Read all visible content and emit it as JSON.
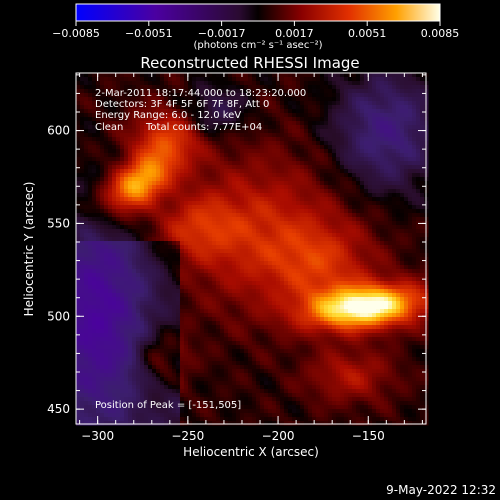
{
  "chart_data": {
    "type": "heatmap",
    "title": "Reconstructed RHESSI Image",
    "xlabel": "Heliocentric X (arcsec)",
    "ylabel": "Heliocentric Y (arcsec)",
    "xlim": [
      -312,
      -118
    ],
    "ylim": [
      442,
      631
    ],
    "xticks": [
      -300,
      -250,
      -200,
      -150
    ],
    "xtick_labels": [
      "−300",
      "−250",
      "−200",
      "−150"
    ],
    "yticks": [
      450,
      500,
      550,
      600
    ],
    "ytick_labels": [
      "450",
      "500",
      "550",
      "600"
    ],
    "colorbar": {
      "min": -0.0085,
      "max": 0.0085,
      "ticks": [
        -0.0085,
        -0.0051,
        -0.0017,
        0.0017,
        0.0051,
        0.0085
      ],
      "tick_labels": [
        "−0.0085",
        "−0.0051",
        "−0.0017",
        "0.0017",
        "0.0051",
        "0.0085"
      ],
      "units": "(photons cm⁻² s⁻¹ asec⁻²)"
    },
    "sources": [
      {
        "x": -278,
        "y": 571,
        "sx": 14,
        "sy": 8,
        "peak": 0.0062,
        "angle": -35
      },
      {
        "x": -262,
        "y": 595,
        "sx": 14,
        "sy": 11,
        "peak": 0.0035,
        "angle": 0
      },
      {
        "x": -151,
        "y": 505,
        "sx": 22,
        "sy": 8,
        "peak": 0.0085,
        "angle": -5
      },
      {
        "x": -210,
        "y": 545,
        "sx": 30,
        "sy": 28,
        "peak": 0.0028,
        "angle": 0
      },
      {
        "x": -245,
        "y": 548,
        "sx": 16,
        "sy": 12,
        "peak": 0.0022,
        "angle": 0
      },
      {
        "x": -175,
        "y": 528,
        "sx": 20,
        "sy": 16,
        "peak": 0.0025,
        "angle": 0
      },
      {
        "x": -265,
        "y": 478,
        "sx": 10,
        "sy": 12,
        "peak": 0.002,
        "angle": 0
      },
      {
        "x": -160,
        "y": 468,
        "sx": 16,
        "sy": 10,
        "peak": 0.0022,
        "angle": 0
      }
    ],
    "negative_regions": [
      {
        "x": -300,
        "y": 500,
        "sx": 18,
        "sy": 38,
        "peak": -0.0035
      },
      {
        "x": -140,
        "y": 600,
        "sx": 20,
        "sy": 22,
        "peak": -0.003
      },
      {
        "x": -235,
        "y": 610,
        "sx": 12,
        "sy": 10,
        "peak": -0.0018
      }
    ],
    "annotations": {
      "time": "2-Mar-2011 18:17:44.000 to 18:23:20.000",
      "detectors": "Detectors: 3F 4F 5F 6F 7F 8F, Att 0",
      "energy": "Energy Range: 6.0 - 12.0 keV",
      "method": "Clean",
      "counts": "Total counts: 7.77E+04",
      "peak": "Position of Peak = [-151,505]"
    }
  },
  "footer": {
    "date": "9-May-2022 12:32"
  }
}
